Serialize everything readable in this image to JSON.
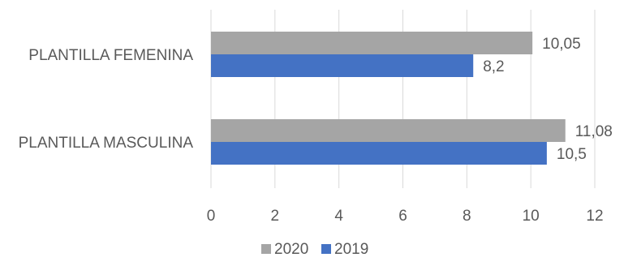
{
  "chart_data": {
    "type": "bar",
    "orientation": "horizontal",
    "title": "",
    "xlabel": "",
    "ylabel": "",
    "categories": [
      "PLANTILLA FEMENINA",
      "PLANTILLA MASCULINA"
    ],
    "series": [
      {
        "name": "2020",
        "values": [
          10.05,
          11.08
        ],
        "labels": [
          "10,05",
          "11,08"
        ],
        "color": "#a5a5a5"
      },
      {
        "name": "2019",
        "values": [
          8.2,
          10.5
        ],
        "labels": [
          "8,2",
          "10,5"
        ],
        "color": "#4472c4"
      }
    ],
    "xlim": [
      0,
      12
    ],
    "xticks": [
      0,
      2,
      4,
      6,
      8,
      10,
      12
    ],
    "xtick_labels": [
      "0",
      "2",
      "4",
      "6",
      "8",
      "10",
      "12"
    ],
    "grid": "vertical",
    "legend_position": "bottom",
    "legend": [
      "2020",
      "2019"
    ]
  }
}
